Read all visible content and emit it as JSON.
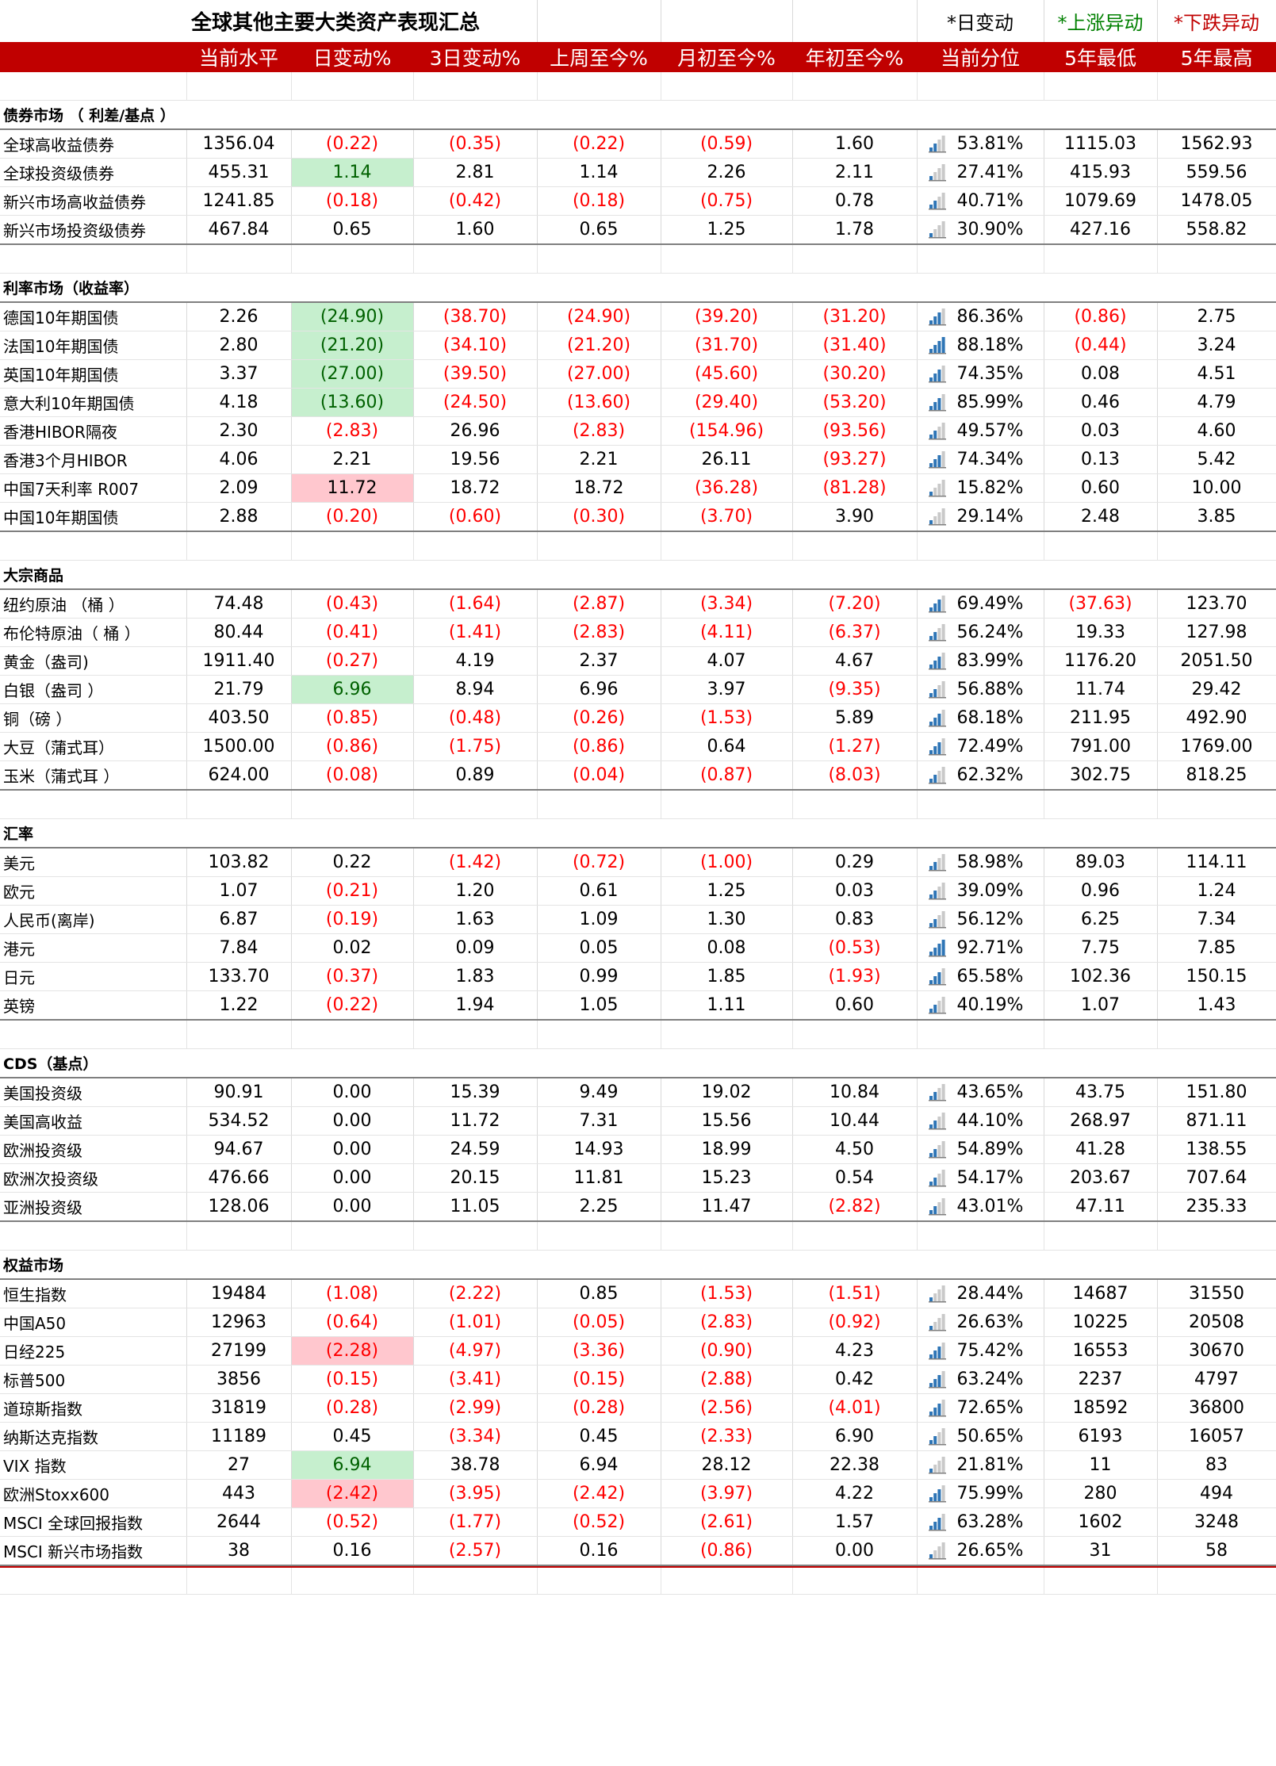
{
  "title": "全球其他主要大类资产表现汇总",
  "legend": {
    "daily": "*日变动",
    "up": "*上涨异动",
    "down": "*下跌异动"
  },
  "columns": [
    "当前水平",
    "日变动%",
    "3日变动%",
    "上周至今%",
    "月初至今%",
    "年初至今%",
    "当前分位",
    "5年最低",
    "5年最高"
  ],
  "colors": {
    "header_red": "#c00000",
    "negative": "#ff0000",
    "up_fill": "#c6efce",
    "down_fill": "#ffc7ce",
    "icon_blue": "#2e75b6"
  },
  "sections": [
    {
      "name": "债券市场 （ 利差/基点 ）",
      "rows": [
        {
          "label": "全球高收益债券",
          "values": [
            "1356.04",
            "(0.22)",
            "(0.35)",
            "(0.22)",
            "(0.59)",
            "1.60",
            "53.81%",
            "1115.03",
            "1562.93"
          ],
          "pct": 0.5381,
          "flag": ""
        },
        {
          "label": "全球投资级债券",
          "values": [
            "455.31",
            "1.14",
            "2.81",
            "1.14",
            "2.26",
            "2.11",
            "27.41%",
            "415.93",
            "559.56"
          ],
          "pct": 0.2741,
          "flag": "up"
        },
        {
          "label": "新兴市场高收益债券",
          "values": [
            "1241.85",
            "(0.18)",
            "(0.42)",
            "(0.18)",
            "(0.75)",
            "0.78",
            "40.71%",
            "1079.69",
            "1478.05"
          ],
          "pct": 0.4071,
          "flag": ""
        },
        {
          "label": "新兴市场投资级债券",
          "values": [
            "467.84",
            "0.65",
            "1.60",
            "0.65",
            "1.25",
            "1.78",
            "30.90%",
            "427.16",
            "558.82"
          ],
          "pct": 0.309,
          "flag": ""
        }
      ]
    },
    {
      "name": "利率市场（收益率）",
      "rows": [
        {
          "label": "德国10年期国债",
          "values": [
            "2.26",
            "(24.90)",
            "(38.70)",
            "(24.90)",
            "(39.20)",
            "(31.20)",
            "86.36%",
            "(0.86)",
            "2.75"
          ],
          "pct": 0.8636,
          "flag": "up"
        },
        {
          "label": "法国10年期国债",
          "values": [
            "2.80",
            "(21.20)",
            "(34.10)",
            "(21.20)",
            "(31.70)",
            "(31.40)",
            "88.18%",
            "(0.44)",
            "3.24"
          ],
          "pct": 0.8818,
          "flag": "up"
        },
        {
          "label": "英国10年期国债",
          "values": [
            "3.37",
            "(27.00)",
            "(39.50)",
            "(27.00)",
            "(45.60)",
            "(30.20)",
            "74.35%",
            "0.08",
            "4.51"
          ],
          "pct": 0.7435,
          "flag": "up"
        },
        {
          "label": "意大利10年期国债",
          "values": [
            "4.18",
            "(13.60)",
            "(24.50)",
            "(13.60)",
            "(29.40)",
            "(53.20)",
            "85.99%",
            "0.46",
            "4.79"
          ],
          "pct": 0.8599,
          "flag": "up"
        },
        {
          "label": "香港HIBOR隔夜",
          "values": [
            "2.30",
            "(2.83)",
            "26.96",
            "(2.83)",
            "(154.96)",
            "(93.56)",
            "49.57%",
            "0.03",
            "4.60"
          ],
          "pct": 0.4957,
          "flag": ""
        },
        {
          "label": "香港3个月HIBOR",
          "values": [
            "4.06",
            "2.21",
            "19.56",
            "2.21",
            "26.11",
            "(93.27)",
            "74.34%",
            "0.13",
            "5.42"
          ],
          "pct": 0.7434,
          "flag": ""
        },
        {
          "label": "中国7天利率 R007",
          "values": [
            "2.09",
            "11.72",
            "18.72",
            "18.72",
            "(36.28)",
            "(81.28)",
            "15.82%",
            "0.60",
            "10.00"
          ],
          "pct": 0.1582,
          "flag": "down"
        },
        {
          "label": "中国10年期国债",
          "values": [
            "2.88",
            "(0.20)",
            "(0.60)",
            "(0.30)",
            "(3.70)",
            "3.90",
            "29.14%",
            "2.48",
            "3.85"
          ],
          "pct": 0.2914,
          "flag": ""
        }
      ]
    },
    {
      "name": "大宗商品",
      "rows": [
        {
          "label": "纽约原油 （桶 ）",
          "values": [
            "74.48",
            "(0.43)",
            "(1.64)",
            "(2.87)",
            "(3.34)",
            "(7.20)",
            "69.49%",
            "(37.63)",
            "123.70"
          ],
          "pct": 0.6949,
          "flag": ""
        },
        {
          "label": "布伦特原油（ 桶 ）",
          "values": [
            "80.44",
            "(0.41)",
            "(1.41)",
            "(2.83)",
            "(4.11)",
            "(6.37)",
            "56.24%",
            "19.33",
            "127.98"
          ],
          "pct": 0.5624,
          "flag": ""
        },
        {
          "label": "黄金（盎司)",
          "values": [
            "1911.40",
            "(0.27)",
            "4.19",
            "2.37",
            "4.07",
            "4.67",
            "83.99%",
            "1176.20",
            "2051.50"
          ],
          "pct": 0.8399,
          "flag": ""
        },
        {
          "label": "白银（盎司 ）",
          "values": [
            "21.79",
            "6.96",
            "8.94",
            "6.96",
            "3.97",
            "(9.35)",
            "56.88%",
            "11.74",
            "29.42"
          ],
          "pct": 0.5688,
          "flag": "up"
        },
        {
          "label": "铜（磅 ）",
          "values": [
            "403.50",
            "(0.85)",
            "(0.48)",
            "(0.26)",
            "(1.53)",
            "5.89",
            "68.18%",
            "211.95",
            "492.90"
          ],
          "pct": 0.6818,
          "flag": ""
        },
        {
          "label": "大豆（蒲式耳）",
          "values": [
            "1500.00",
            "(0.86)",
            "(1.75)",
            "(0.86)",
            "0.64",
            "(1.27)",
            "72.49%",
            "791.00",
            "1769.00"
          ],
          "pct": 0.7249,
          "flag": ""
        },
        {
          "label": "玉米（蒲式耳 ）",
          "values": [
            "624.00",
            "(0.08)",
            "0.89",
            "(0.04)",
            "(0.87)",
            "(8.03)",
            "62.32%",
            "302.75",
            "818.25"
          ],
          "pct": 0.6232,
          "flag": ""
        }
      ]
    },
    {
      "name": "汇率",
      "rows": [
        {
          "label": "美元",
          "values": [
            "103.82",
            "0.22",
            "(1.42)",
            "(0.72)",
            "(1.00)",
            "0.29",
            "58.98%",
            "89.03",
            "114.11"
          ],
          "pct": 0.5898,
          "flag": ""
        },
        {
          "label": "欧元",
          "values": [
            "1.07",
            "(0.21)",
            "1.20",
            "0.61",
            "1.25",
            "0.03",
            "39.09%",
            "0.96",
            "1.24"
          ],
          "pct": 0.3909,
          "flag": ""
        },
        {
          "label": "人民币(离岸)",
          "values": [
            "6.87",
            "(0.19)",
            "1.63",
            "1.09",
            "1.30",
            "0.83",
            "56.12%",
            "6.25",
            "7.34"
          ],
          "pct": 0.5612,
          "flag": ""
        },
        {
          "label": "港元",
          "values": [
            "7.84",
            "0.02",
            "0.09",
            "0.05",
            "0.08",
            "(0.53)",
            "92.71%",
            "7.75",
            "7.85"
          ],
          "pct": 0.9271,
          "flag": ""
        },
        {
          "label": "日元",
          "values": [
            "133.70",
            "(0.37)",
            "1.83",
            "0.99",
            "1.85",
            "(1.93)",
            "65.58%",
            "102.36",
            "150.15"
          ],
          "pct": 0.6558,
          "flag": ""
        },
        {
          "label": "英镑",
          "values": [
            "1.22",
            "(0.22)",
            "1.94",
            "1.05",
            "1.11",
            "0.60",
            "40.19%",
            "1.07",
            "1.43"
          ],
          "pct": 0.4019,
          "flag": ""
        }
      ]
    },
    {
      "name": "CDS（基点）",
      "rows": [
        {
          "label": "美国投资级",
          "values": [
            "90.91",
            "0.00",
            "15.39",
            "9.49",
            "19.02",
            "10.84",
            "43.65%",
            "43.75",
            "151.80"
          ],
          "pct": 0.4365,
          "flag": ""
        },
        {
          "label": "美国高收益",
          "values": [
            "534.52",
            "0.00",
            "11.72",
            "7.31",
            "15.56",
            "10.44",
            "44.10%",
            "268.97",
            "871.11"
          ],
          "pct": 0.441,
          "flag": ""
        },
        {
          "label": "欧洲投资级",
          "values": [
            "94.67",
            "0.00",
            "24.59",
            "14.93",
            "18.99",
            "4.50",
            "54.89%",
            "41.28",
            "138.55"
          ],
          "pct": 0.5489,
          "flag": ""
        },
        {
          "label": "欧洲次投资级",
          "values": [
            "476.66",
            "0.00",
            "20.15",
            "11.81",
            "15.23",
            "0.54",
            "54.17%",
            "203.67",
            "707.64"
          ],
          "pct": 0.5417,
          "flag": ""
        },
        {
          "label": "亚洲投资级",
          "values": [
            "128.06",
            "0.00",
            "11.05",
            "2.25",
            "11.47",
            "(2.82)",
            "43.01%",
            "47.11",
            "235.33"
          ],
          "pct": 0.4301,
          "flag": ""
        }
      ]
    },
    {
      "name": "权益市场",
      "rows": [
        {
          "label": "恒生指数",
          "values": [
            "19484",
            "(1.08)",
            "(2.22)",
            "0.85",
            "(1.53)",
            "(1.51)",
            "28.44%",
            "14687",
            "31550"
          ],
          "pct": 0.2844,
          "flag": ""
        },
        {
          "label": "中国A50",
          "values": [
            "12963",
            "(0.64)",
            "(1.01)",
            "(0.05)",
            "(2.83)",
            "(0.92)",
            "26.63%",
            "10225",
            "20508"
          ],
          "pct": 0.2663,
          "flag": ""
        },
        {
          "label": "日经225",
          "values": [
            "27199",
            "(2.28)",
            "(4.97)",
            "(3.36)",
            "(0.90)",
            "4.23",
            "75.42%",
            "16553",
            "30670"
          ],
          "pct": 0.7542,
          "flag": "down"
        },
        {
          "label": "标普500",
          "values": [
            "3856",
            "(0.15)",
            "(3.41)",
            "(0.15)",
            "(2.88)",
            "0.42",
            "63.24%",
            "2237",
            "4797"
          ],
          "pct": 0.6324,
          "flag": ""
        },
        {
          "label": "道琼斯指数",
          "values": [
            "31819",
            "(0.28)",
            "(2.99)",
            "(0.28)",
            "(2.56)",
            "(4.01)",
            "72.65%",
            "18592",
            "36800"
          ],
          "pct": 0.7265,
          "flag": ""
        },
        {
          "label": "纳斯达克指数",
          "values": [
            "11189",
            "0.45",
            "(3.34)",
            "0.45",
            "(2.33)",
            "6.90",
            "50.65%",
            "6193",
            "16057"
          ],
          "pct": 0.5065,
          "flag": ""
        },
        {
          "label": "VIX 指数",
          "values": [
            "27",
            "6.94",
            "38.78",
            "6.94",
            "28.12",
            "22.38",
            "21.81%",
            "11",
            "83"
          ],
          "pct": 0.2181,
          "flag": "up"
        },
        {
          "label": "欧洲Stoxx600",
          "values": [
            "443",
            "(2.42)",
            "(3.95)",
            "(2.42)",
            "(3.97)",
            "4.22",
            "75.99%",
            "280",
            "494"
          ],
          "pct": 0.7599,
          "flag": "down"
        },
        {
          "label": "MSCI 全球回报指数",
          "values": [
            "2644",
            "(0.52)",
            "(1.77)",
            "(0.52)",
            "(2.61)",
            "1.57",
            "63.28%",
            "1602",
            "3248"
          ],
          "pct": 0.6328,
          "flag": ""
        },
        {
          "label": "MSCI 新兴市场指数",
          "values": [
            "38",
            "0.16",
            "(2.57)",
            "0.16",
            "(0.86)",
            "0.00",
            "26.65%",
            "31",
            "58"
          ],
          "pct": 0.2665,
          "flag": ""
        }
      ]
    }
  ]
}
